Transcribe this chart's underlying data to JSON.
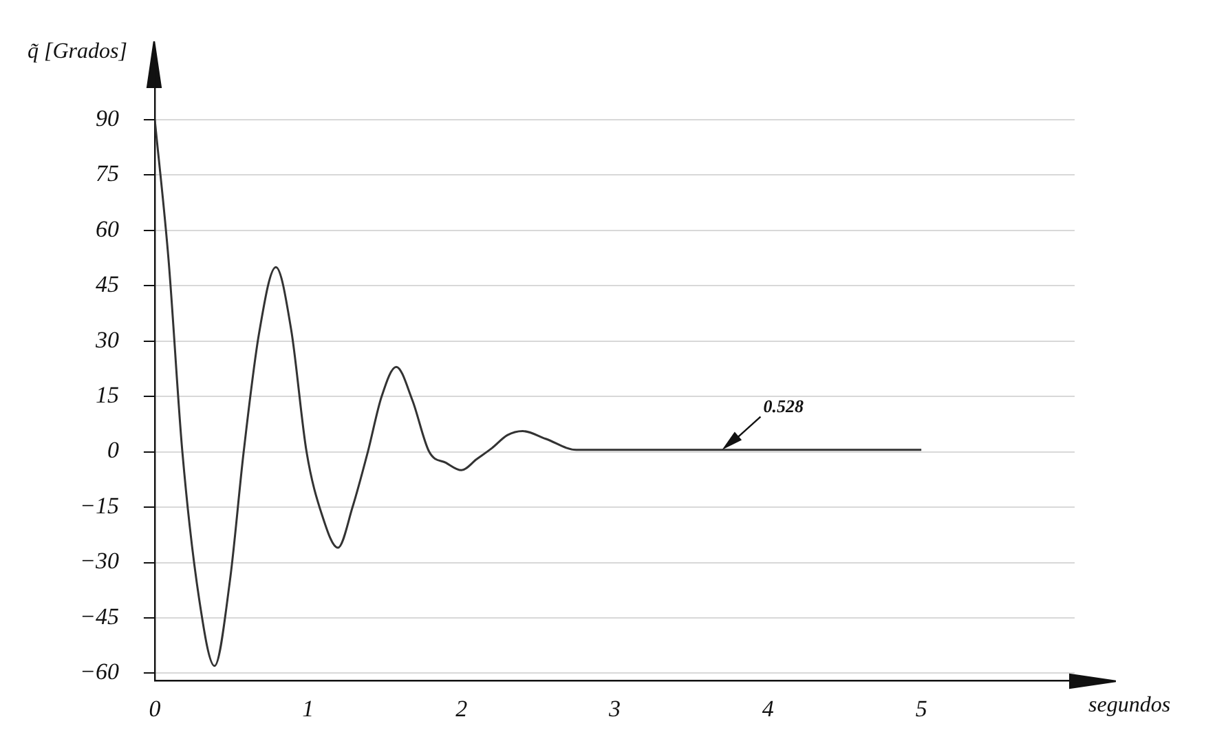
{
  "chart_data": {
    "type": "line",
    "xlabel": "segundos",
    "ylabel": "q̃ [Grados]",
    "xlim": [
      0,
      6
    ],
    "ylim": [
      -62,
      100
    ],
    "xticks": [
      0,
      1,
      2,
      3,
      4,
      5
    ],
    "yticks": [
      -60,
      -45,
      -30,
      -15,
      0,
      15,
      30,
      45,
      60,
      75,
      90
    ],
    "grid": "y",
    "legend": false,
    "marker": "none",
    "line_style": "solid",
    "series": [
      {
        "color": "#333333",
        "x": [
          0,
          0.09,
          0.18,
          0.29,
          0.39,
          0.49,
          0.58,
          0.68,
          0.79,
          0.89,
          0.99,
          1.09,
          1.195,
          1.29,
          1.39,
          1.48,
          1.575,
          1.68,
          1.79,
          1.9,
          2.0,
          2.1,
          2.2,
          2.3,
          2.4,
          2.55,
          2.75,
          5
        ],
        "values": [
          90,
          52,
          0,
          -40,
          -58,
          -35,
          0,
          32,
          50,
          33,
          0,
          -17,
          -26,
          -15,
          0,
          15,
          23,
          14,
          0,
          -3,
          -5,
          -2,
          1,
          4.5,
          5.6,
          3.5,
          0.5,
          0.5
        ]
      }
    ],
    "annotations": [
      {
        "text": "0.528",
        "x": 3.7,
        "y": 0.528
      }
    ]
  }
}
